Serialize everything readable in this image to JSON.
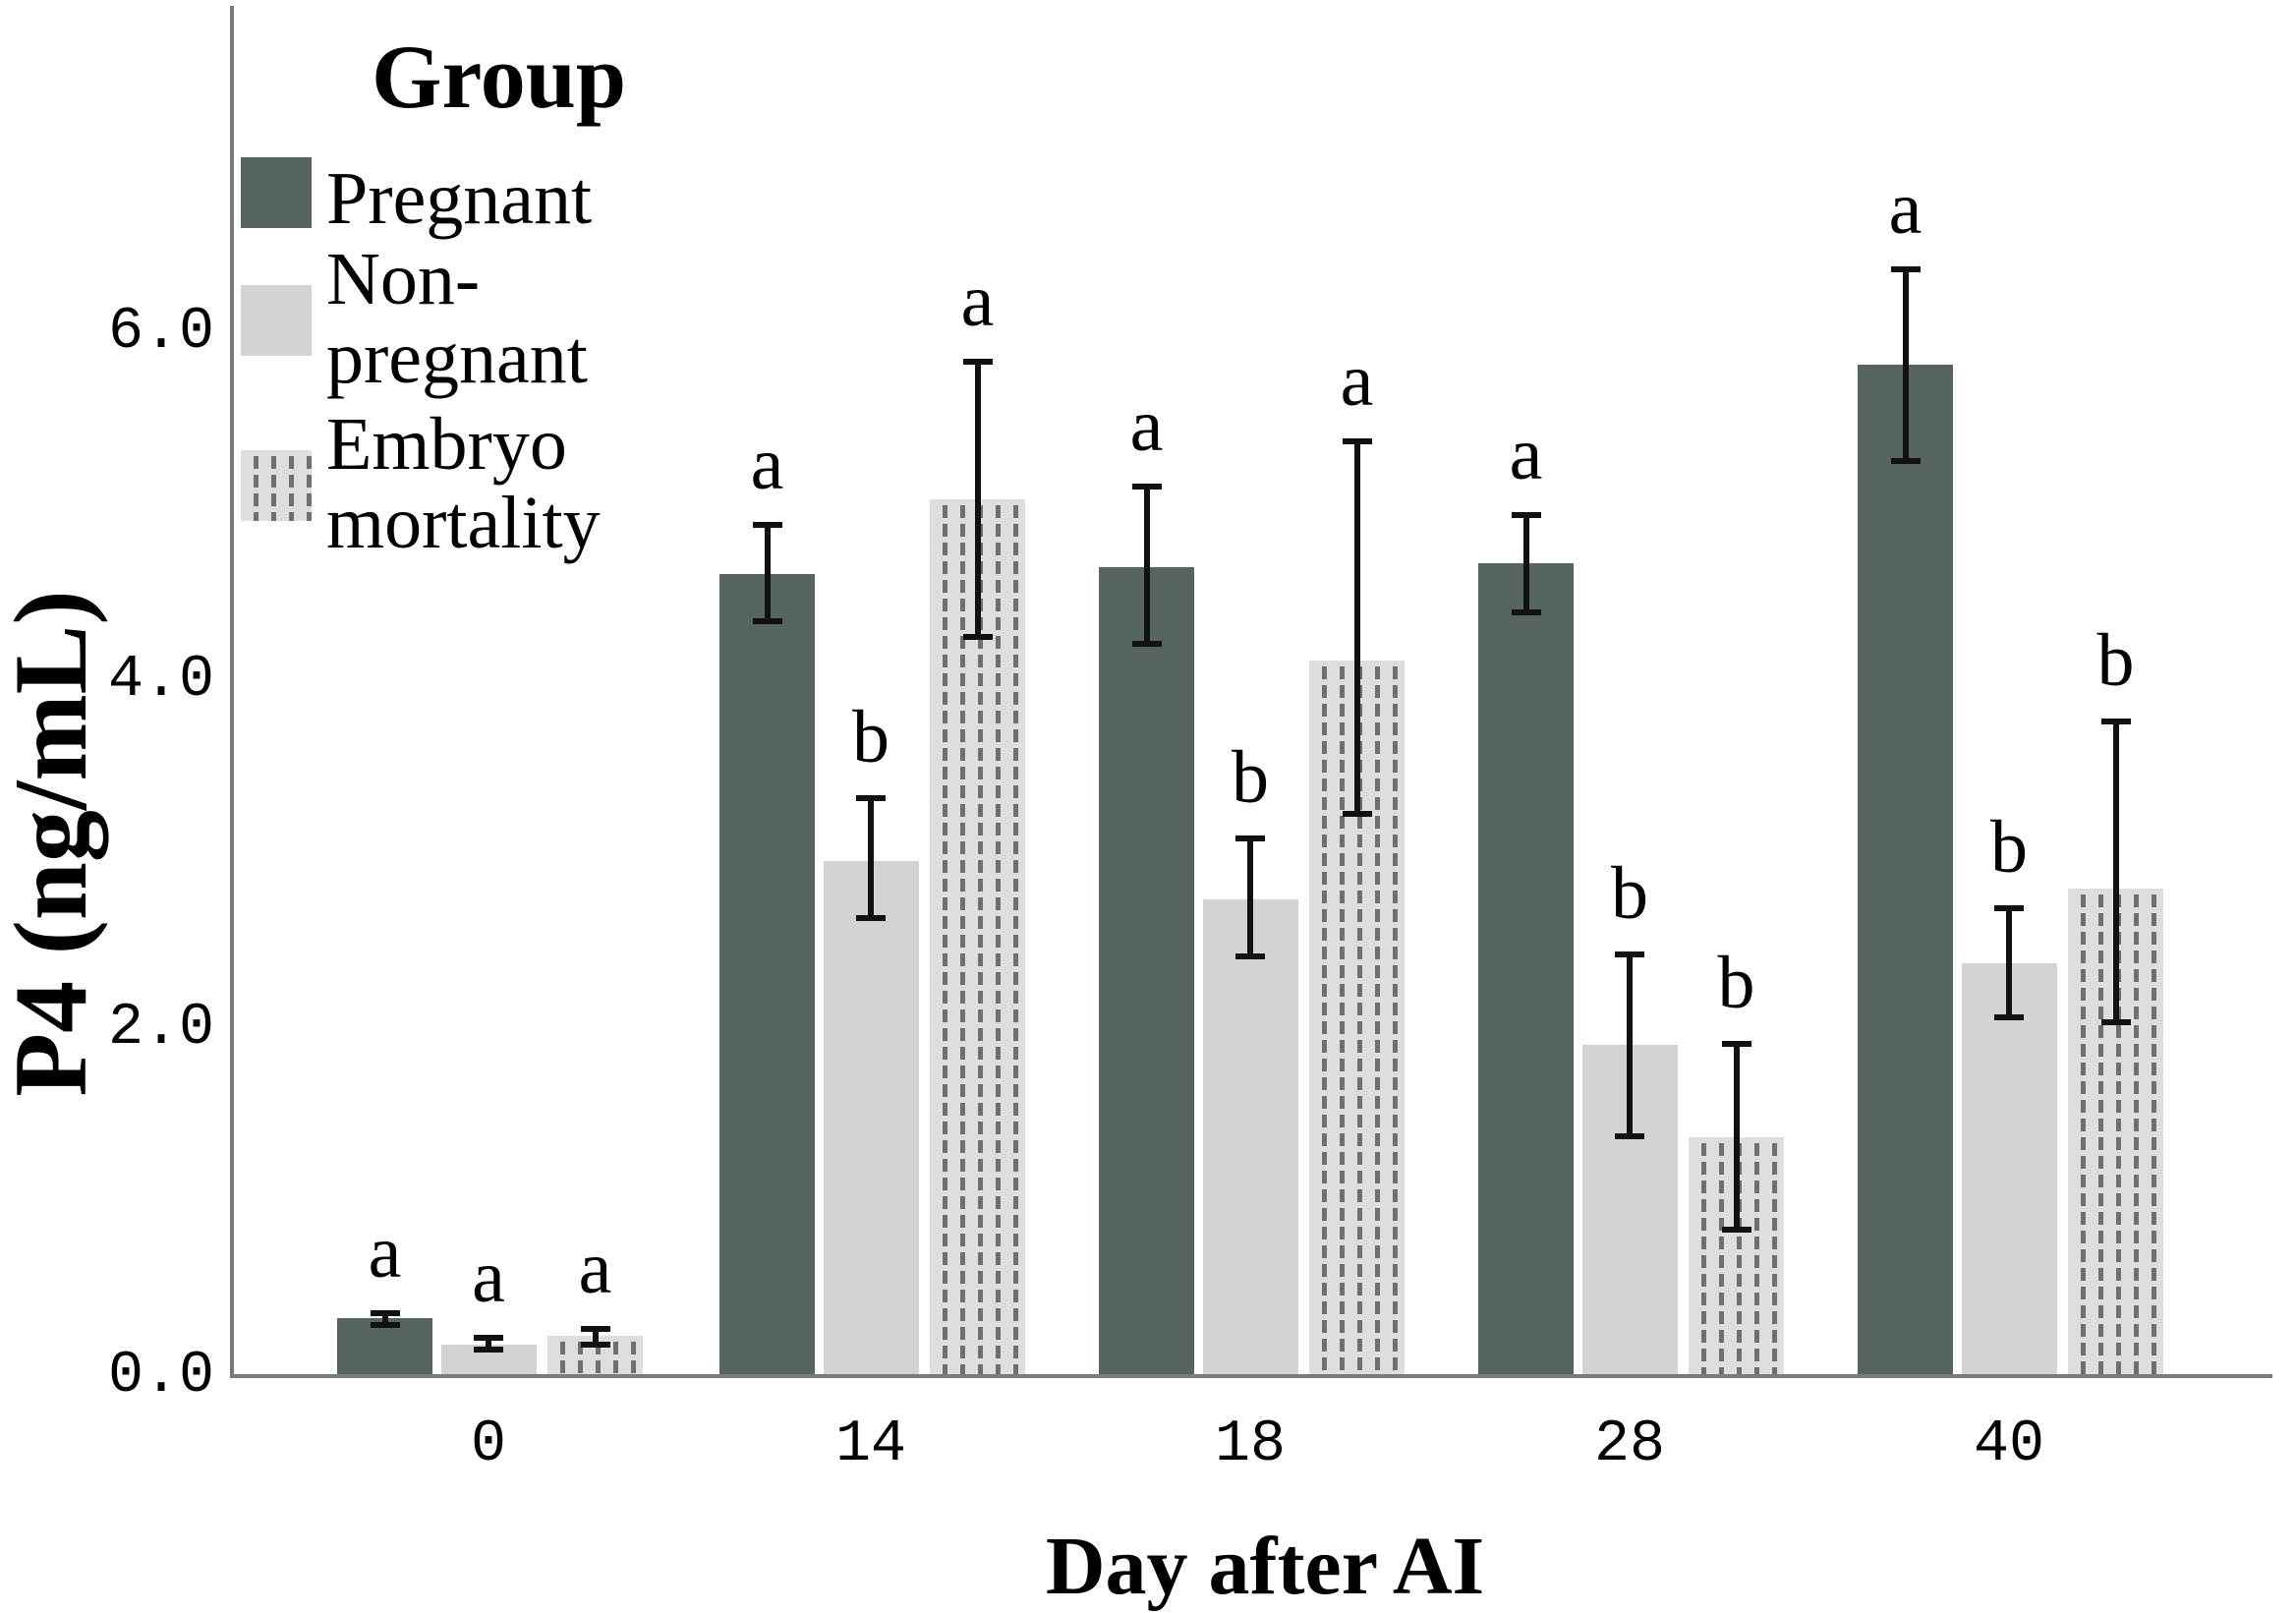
{
  "figure": {
    "legend": {
      "title": "Group",
      "items": [
        {
          "label": "Pregnant",
          "lines": [
            "Pregnant"
          ],
          "style": "pregnant"
        },
        {
          "label": "Non-pregnant",
          "lines": [
            "Non-",
            "pregnant"
          ],
          "style": "non_pregnant"
        },
        {
          "label": "Embryo mortality",
          "lines": [
            "Embryo",
            "mortality"
          ],
          "style": "embryo"
        }
      ]
    },
    "y_axis": {
      "title": "P4 (ng/mL)",
      "tick_labels": [
        "0.0",
        "2.0",
        "4.0",
        "6.0"
      ],
      "tick_values": [
        0,
        2,
        4,
        6
      ]
    },
    "x_axis": {
      "title": "Day after AI",
      "tick_labels": [
        "0",
        "14",
        "18",
        "28",
        "40"
      ]
    }
  },
  "colors": {
    "pregnant": "#57665c",
    "non_pregnant": "#d3d3d3",
    "embryo_bg": "#dedede",
    "embryo_dash": "#6f6f6f",
    "axis": "#7a7a7a",
    "error_bar": "#111111",
    "text": "#000000",
    "background": "#ffffff"
  },
  "chart_data": {
    "type": "bar",
    "title": "",
    "xlabel": "Day after AI",
    "ylabel": "P4 (ng/mL)",
    "categories": [
      "0",
      "14",
      "18",
      "28",
      "40"
    ],
    "ylim": [
      0,
      6.9
    ],
    "grid": false,
    "legend_position": "upper-left",
    "error_bars": true,
    "series": [
      {
        "name": "Pregnant",
        "values": [
          0.32,
          4.6,
          4.64,
          4.66,
          5.8
        ],
        "err_high": [
          0.35,
          4.88,
          5.1,
          4.94,
          6.35
        ],
        "err_low": [
          0.28,
          4.33,
          4.2,
          4.38,
          5.25
        ],
        "letters": [
          "a",
          "a",
          "a",
          "a",
          "a"
        ]
      },
      {
        "name": "Non-pregnant",
        "values": [
          0.17,
          2.95,
          2.73,
          1.89,
          2.36
        ],
        "err_high": [
          0.21,
          3.31,
          3.08,
          2.41,
          2.68
        ],
        "err_low": [
          0.14,
          2.62,
          2.4,
          1.37,
          2.05
        ],
        "letters": [
          "a",
          "b",
          "b",
          "b",
          "b"
        ]
      },
      {
        "name": "Embryo mortality",
        "values": [
          0.22,
          5.03,
          4.1,
          1.36,
          2.79
        ],
        "err_high": [
          0.26,
          5.82,
          5.36,
          1.9,
          3.75
        ],
        "err_low": [
          0.17,
          4.24,
          3.22,
          0.83,
          2.02
        ],
        "letters": [
          "a",
          "a",
          "a",
          "b",
          "b"
        ]
      }
    ]
  }
}
